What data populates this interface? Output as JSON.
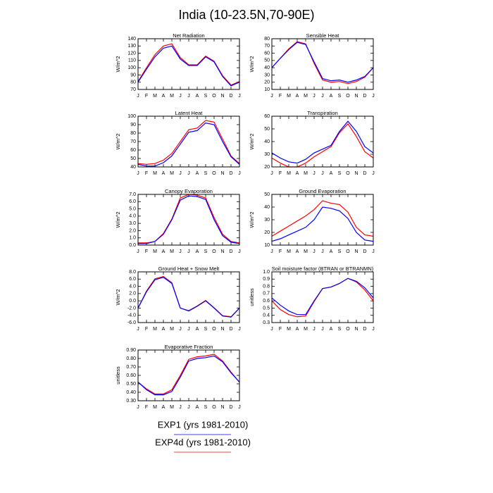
{
  "title": "India (10-23.5N,70-90E)",
  "chart_data": [
    {
      "type": "line",
      "title": "Net Radiation",
      "ylabel": "W/m^2",
      "categories": [
        "J",
        "F",
        "M",
        "A",
        "M",
        "J",
        "J",
        "A",
        "S",
        "O",
        "N",
        "D",
        "J"
      ],
      "ylim": [
        70,
        140
      ],
      "yticks": [
        70,
        80,
        90,
        100,
        110,
        120,
        130,
        140
      ],
      "series": [
        {
          "name": "EXP1 (yrs 1981-2010)",
          "color": "#0000ff",
          "values": [
            80,
            98,
            115,
            127,
            130,
            112,
            103,
            103,
            115,
            108,
            88,
            75,
            80
          ]
        },
        {
          "name": "EXP4d (yrs 1981-2010)",
          "color": "#ff0000",
          "values": [
            81,
            100,
            118,
            130,
            133,
            114,
            104,
            104,
            116,
            109,
            89,
            76,
            81
          ]
        }
      ]
    },
    {
      "type": "line",
      "title": "Sensible Heat",
      "ylabel": "W/m^2",
      "categories": [
        "J",
        "F",
        "M",
        "A",
        "M",
        "J",
        "J",
        "A",
        "S",
        "O",
        "N",
        "D",
        "J"
      ],
      "ylim": [
        10,
        80
      ],
      "yticks": [
        10,
        20,
        30,
        40,
        50,
        60,
        70,
        80
      ],
      "series": [
        {
          "name": "EXP1 (yrs 1981-2010)",
          "color": "#0000ff",
          "values": [
            40,
            53,
            65,
            75,
            72,
            48,
            25,
            22,
            23,
            20,
            23,
            28,
            40
          ]
        },
        {
          "name": "EXP4d (yrs 1981-2010)",
          "color": "#ff0000",
          "values": [
            40,
            53,
            66,
            76,
            73,
            46,
            23,
            20,
            21,
            18,
            21,
            27,
            40
          ]
        }
      ]
    },
    {
      "type": "line",
      "title": "Latent Heat",
      "ylabel": "W/m^2",
      "categories": [
        "J",
        "F",
        "M",
        "A",
        "M",
        "J",
        "J",
        "A",
        "S",
        "O",
        "N",
        "D",
        "J"
      ],
      "ylim": [
        40,
        100
      ],
      "yticks": [
        40,
        50,
        60,
        70,
        80,
        90,
        100
      ],
      "series": [
        {
          "name": "EXP1 (yrs 1981-2010)",
          "color": "#0000ff",
          "values": [
            43,
            41,
            41,
            45,
            53,
            67,
            81,
            83,
            92,
            90,
            70,
            52,
            43
          ]
        },
        {
          "name": "EXP4d (yrs 1981-2010)",
          "color": "#ff0000",
          "values": [
            44,
            43,
            44,
            48,
            56,
            70,
            84,
            86,
            95,
            93,
            73,
            53,
            44
          ]
        }
      ]
    },
    {
      "type": "line",
      "title": "Transpiration",
      "ylabel": "W/m^2",
      "categories": [
        "J",
        "F",
        "M",
        "A",
        "M",
        "J",
        "J",
        "A",
        "S",
        "O",
        "N",
        "D",
        "J"
      ],
      "ylim": [
        20,
        60
      ],
      "yticks": [
        20,
        30,
        40,
        50,
        60
      ],
      "series": [
        {
          "name": "EXP1 (yrs 1981-2010)",
          "color": "#0000ff",
          "values": [
            31,
            27,
            24,
            23,
            26,
            31,
            34,
            37,
            48,
            56,
            48,
            36,
            31
          ]
        },
        {
          "name": "EXP4d (yrs 1981-2010)",
          "color": "#ff0000",
          "values": [
            27,
            23,
            20,
            20,
            23,
            28,
            32,
            36,
            47,
            54,
            44,
            32,
            27
          ]
        }
      ]
    },
    {
      "type": "line",
      "title": "Canopy Evaporation",
      "ylabel": "W/m^2",
      "categories": [
        "J",
        "F",
        "M",
        "A",
        "M",
        "J",
        "J",
        "A",
        "S",
        "O",
        "N",
        "D",
        "J"
      ],
      "ylim": [
        0,
        7
      ],
      "yticks": [
        {
          "value": 0,
          "label": "0.0"
        },
        {
          "value": 1,
          "label": "1.0"
        },
        {
          "value": 2,
          "label": "2.0"
        },
        {
          "value": 3,
          "label": "3.0"
        },
        {
          "value": 4,
          "label": "4.0"
        },
        {
          "value": 5,
          "label": "5.0"
        },
        {
          "value": 6,
          "label": "6.0"
        },
        {
          "value": 7,
          "label": "7.0"
        }
      ],
      "series": [
        {
          "name": "EXP1 (yrs 1981-2010)",
          "color": "#0000ff",
          "values": [
            0.2,
            0.2,
            0.5,
            1.5,
            3.5,
            6.2,
            6.8,
            6.7,
            6.3,
            3.5,
            1.3,
            0.4,
            0.2
          ]
        },
        {
          "name": "EXP4d (yrs 1981-2010)",
          "color": "#ff0000",
          "values": [
            0.3,
            0.3,
            0.5,
            1.6,
            3.6,
            6.5,
            7.0,
            6.9,
            6.5,
            3.8,
            1.5,
            0.5,
            0.3
          ]
        }
      ]
    },
    {
      "type": "line",
      "title": "Ground Evaporation",
      "ylabel": "W/m^2",
      "categories": [
        "J",
        "F",
        "M",
        "A",
        "M",
        "J",
        "J",
        "A",
        "S",
        "O",
        "N",
        "D",
        "J"
      ],
      "ylim": [
        10,
        50
      ],
      "yticks": [
        10,
        20,
        30,
        40,
        50
      ],
      "series": [
        {
          "name": "EXP1 (yrs 1981-2010)",
          "color": "#0000ff",
          "values": [
            13,
            15,
            18,
            21,
            24,
            30,
            40,
            39,
            37,
            31,
            20,
            14,
            13
          ]
        },
        {
          "name": "EXP4d (yrs 1981-2010)",
          "color": "#ff0000",
          "values": [
            17,
            21,
            25,
            29,
            33,
            38,
            45,
            43,
            42,
            36,
            24,
            18,
            17
          ]
        }
      ]
    },
    {
      "type": "line",
      "title": "Ground Heat + Snow Melt",
      "ylabel": "W/m^2",
      "categories": [
        "J",
        "F",
        "M",
        "A",
        "M",
        "J",
        "J",
        "A",
        "S",
        "O",
        "N",
        "D",
        "J"
      ],
      "ylim": [
        -6,
        8
      ],
      "yticks": [
        {
          "value": -6,
          "label": "-6.0"
        },
        {
          "value": -4,
          "label": "-4.0"
        },
        {
          "value": -2,
          "label": "-2.0"
        },
        {
          "value": 0,
          "label": "0.0"
        },
        {
          "value": 2,
          "label": "2.0"
        },
        {
          "value": 4,
          "label": "4.0"
        },
        {
          "value": 6,
          "label": "6.0"
        },
        {
          "value": 8,
          "label": "8.0"
        }
      ],
      "series": [
        {
          "name": "EXP1 (yrs 1981-2010)",
          "color": "#0000ff",
          "values": [
            -2.0,
            2.5,
            5.8,
            6.5,
            4.8,
            -2.0,
            -2.8,
            -1.5,
            0.0,
            -2.0,
            -4.2,
            -4.5,
            -2.0
          ]
        },
        {
          "name": "EXP4d (yrs 1981-2010)",
          "color": "#ff0000",
          "values": [
            -2.0,
            2.7,
            6.1,
            6.7,
            5.0,
            -2.0,
            -2.7,
            -1.4,
            0.1,
            -1.9,
            -4.1,
            -4.4,
            -2.0
          ]
        }
      ]
    },
    {
      "type": "line",
      "title": "Soil moisture factor (BTRAN or BTRANMN)",
      "ylabel": "unitless",
      "categories": [
        "J",
        "F",
        "M",
        "A",
        "M",
        "J",
        "J",
        "A",
        "S",
        "O",
        "N",
        "D",
        "J"
      ],
      "ylim": [
        0.3,
        1.0
      ],
      "yticks": [
        0.3,
        0.4,
        0.5,
        0.6,
        0.7,
        0.8,
        0.9,
        {
          "value": 1,
          "label": "1.0"
        }
      ],
      "series": [
        {
          "name": "EXP1 (yrs 1981-2010)",
          "color": "#0000ff",
          "values": [
            0.64,
            0.54,
            0.46,
            0.41,
            0.41,
            0.6,
            0.77,
            0.79,
            0.84,
            0.91,
            0.87,
            0.78,
            0.64
          ]
        },
        {
          "name": "EXP4d (yrs 1981-2010)",
          "color": "#ff0000",
          "values": [
            0.6,
            0.48,
            0.41,
            0.38,
            0.39,
            0.59,
            0.77,
            0.79,
            0.84,
            0.91,
            0.86,
            0.75,
            0.6
          ]
        }
      ]
    },
    {
      "type": "line",
      "title": "Evaporative Fraction",
      "ylabel": "unitless",
      "categories": [
        "J",
        "F",
        "M",
        "A",
        "M",
        "J",
        "J",
        "A",
        "S",
        "O",
        "N",
        "D",
        "J"
      ],
      "ylim": [
        0.3,
        0.9
      ],
      "yticks": [
        {
          "value": 0.3,
          "label": "0.30"
        },
        {
          "value": 0.4,
          "label": "0.40"
        },
        {
          "value": 0.5,
          "label": "0.50"
        },
        {
          "value": 0.6,
          "label": "0.60"
        },
        {
          "value": 0.7,
          "label": "0.70"
        },
        {
          "value": 0.8,
          "label": "0.80"
        },
        {
          "value": 0.9,
          "label": "0.90"
        }
      ],
      "series": [
        {
          "name": "EXP1 (yrs 1981-2010)",
          "color": "#0000ff",
          "values": [
            0.52,
            0.43,
            0.37,
            0.37,
            0.41,
            0.58,
            0.77,
            0.8,
            0.81,
            0.83,
            0.76,
            0.63,
            0.52
          ]
        },
        {
          "name": "EXP4d (yrs 1981-2010)",
          "color": "#ff0000",
          "values": [
            0.52,
            0.44,
            0.38,
            0.38,
            0.43,
            0.6,
            0.79,
            0.82,
            0.83,
            0.85,
            0.77,
            0.64,
            0.52
          ]
        }
      ]
    }
  ]
}
